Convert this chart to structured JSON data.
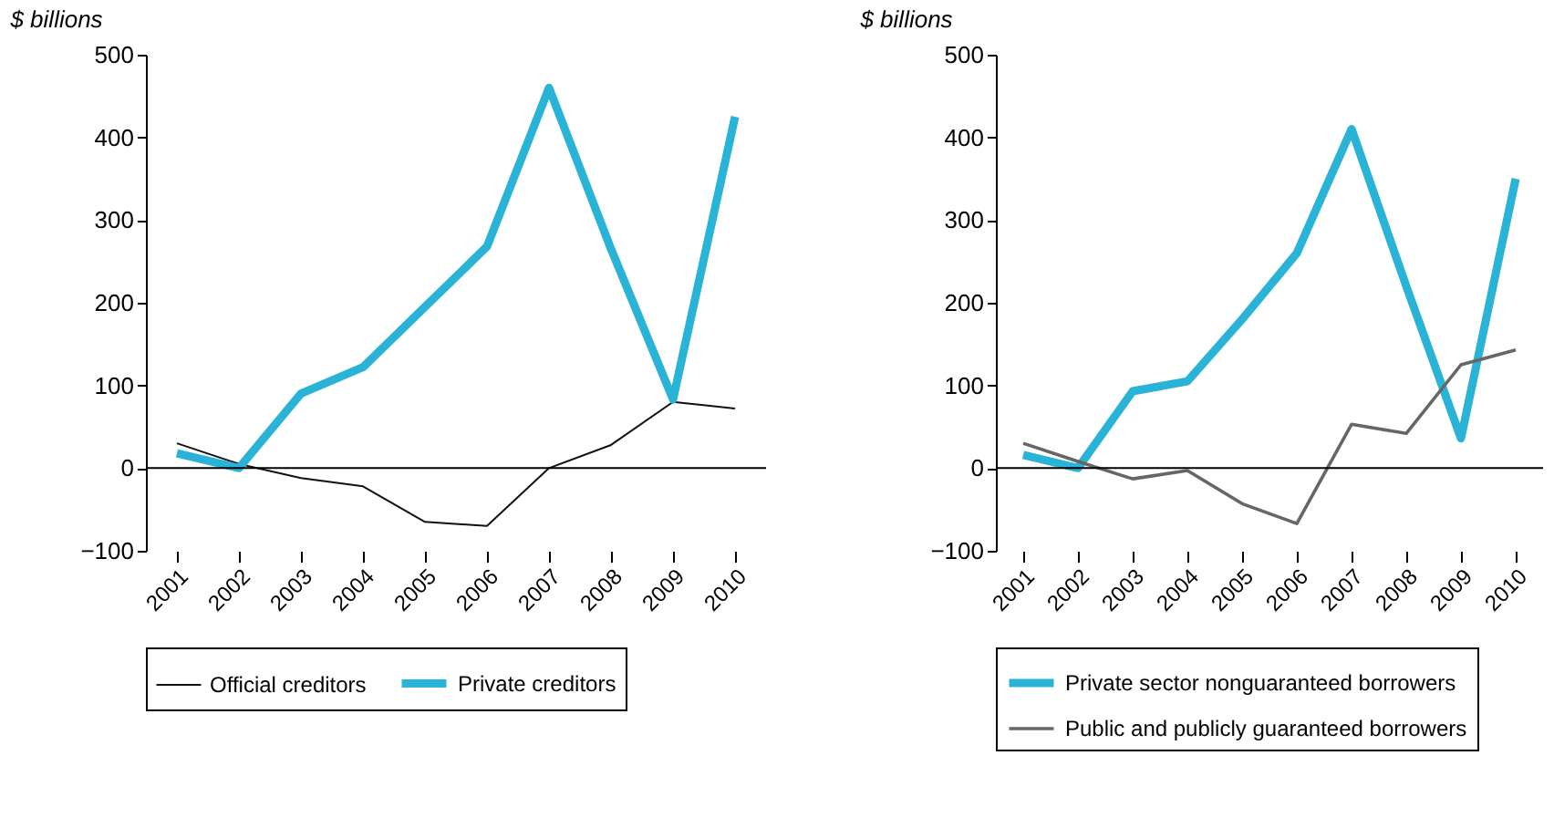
{
  "chart_data": [
    {
      "type": "line",
      "ylabel": "$ billions",
      "categories": [
        "2001",
        "2002",
        "2003",
        "2004",
        "2005",
        "2006",
        "2007",
        "2008",
        "2009",
        "2010"
      ],
      "ylim": [
        -100,
        500
      ],
      "yticks": [
        -100,
        0,
        100,
        200,
        300,
        400,
        500
      ],
      "grid": false,
      "legend": "bottom",
      "marker": "none",
      "line_style": "solid",
      "series": [
        {
          "name": "Official creditors",
          "color": "#111111",
          "values": [
            30,
            5,
            -12,
            -22,
            -65,
            -70,
            0,
            28,
            80,
            72
          ]
        },
        {
          "name": "Private creditors",
          "color": "#29b3d6",
          "values": [
            18,
            0,
            90,
            122,
            195,
            268,
            460,
            265,
            83,
            425
          ]
        }
      ],
      "ref_lines": [
        {
          "axis": "y",
          "value": 0,
          "color": "#000000"
        }
      ]
    },
    {
      "type": "line",
      "ylabel": "$ billions",
      "categories": [
        "2001",
        "2002",
        "2003",
        "2004",
        "2005",
        "2006",
        "2007",
        "2008",
        "2009",
        "2010"
      ],
      "ylim": [
        -100,
        500
      ],
      "yticks": [
        -100,
        0,
        100,
        200,
        300,
        400,
        500
      ],
      "grid": false,
      "legend": "bottom",
      "marker": "none",
      "line_style": "solid",
      "series": [
        {
          "name": "Private sector nonguaranteed borrowers",
          "color": "#29b3d6",
          "values": [
            16,
            0,
            93,
            105,
            180,
            260,
            410,
            220,
            36,
            350
          ]
        },
        {
          "name": "Public and publicly guaranteed borrowers",
          "color": "#666666",
          "values": [
            30,
            8,
            -13,
            -3,
            -43,
            -67,
            53,
            42,
            125,
            143
          ]
        }
      ],
      "ref_lines": [
        {
          "axis": "y",
          "value": 0,
          "color": "#000000"
        }
      ]
    }
  ]
}
